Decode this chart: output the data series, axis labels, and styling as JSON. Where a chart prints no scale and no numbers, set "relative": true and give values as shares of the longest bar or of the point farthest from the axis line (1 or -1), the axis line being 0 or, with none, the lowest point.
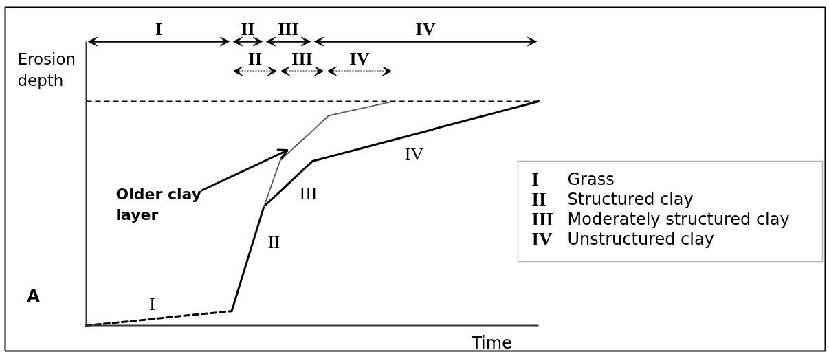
{
  "chart_data": {
    "type": "line",
    "relative": true,
    "xlabel": "Time",
    "ylabel": "Erosion depth",
    "categories": [
      null,
      null,
      null,
      null,
      null,
      null,
      null,
      null,
      null,
      null,
      null,
      null,
      null,
      null,
      null,
      null,
      null,
      null,
      null,
      null,
      null,
      null,
      null,
      null,
      null,
      null,
      null,
      null,
      null
    ],
    "series": [
      {
        "color": "#000000",
        "line_style": "dashed",
        "values": [
          0,
          0.007,
          0.014,
          0.021,
          0.028,
          0.036,
          0.043,
          0.05,
          0.057,
          0.064,
          null,
          null,
          null,
          null,
          null,
          null,
          null,
          null,
          null,
          null,
          null,
          null,
          null,
          null,
          null,
          null,
          null,
          null,
          null
        ]
      },
      {
        "color": "#000000",
        "line_style": "solid",
        "values": [
          null,
          null,
          null,
          null,
          null,
          null,
          null,
          null,
          null,
          0.064,
          0.298,
          0.531,
          0.598,
          0.666,
          0.733,
          0.752,
          0.771,
          0.79,
          0.809,
          0.828,
          0.847,
          0.866,
          0.886,
          0.905,
          0.924,
          0.943,
          0.962,
          0.981,
          1
        ]
      },
      {
        "color": "#555555",
        "line_style": "dotted",
        "values": [
          null,
          null,
          null,
          null,
          null,
          null,
          null,
          null,
          null,
          null,
          null,
          0.531,
          0.736,
          0.803,
          0.869,
          0.936,
          0.952,
          0.968,
          0.984,
          1,
          null,
          null,
          null,
          null,
          null,
          null,
          null,
          null,
          null
        ]
      }
    ],
    "ref_lines": [
      {
        "axis": "y",
        "value": 1,
        "line_style": "dashed",
        "color": "#000000"
      }
    ],
    "annotations": [
      "I",
      "II",
      "III",
      "IV",
      "II",
      "III",
      "IV",
      "Older clay layer",
      "I",
      "II",
      "III",
      "IV",
      "I Grass",
      "II Structured clay",
      "III Moderately structured clay",
      "IV Unstructured clay",
      "A"
    ]
  }
}
